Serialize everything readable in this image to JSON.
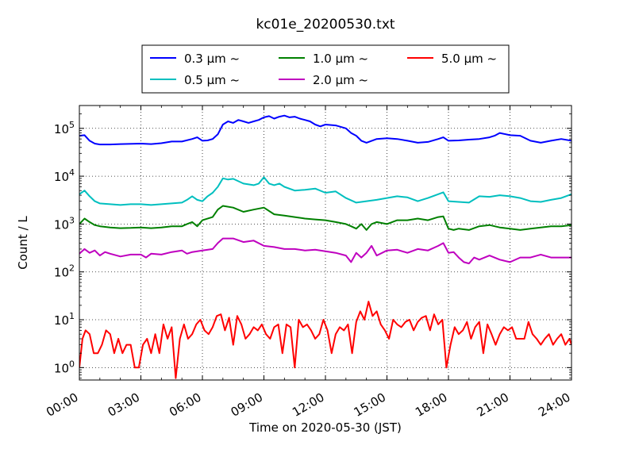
{
  "chart_data": {
    "type": "line",
    "title": "kc01e_20200530.txt",
    "xlabel": "Time on 2020-05-30 (JST)",
    "ylabel": "Count / L",
    "xlim": [
      0,
      24
    ],
    "ylim": [
      0.55,
      300000
    ],
    "yscale": "log",
    "grid": true,
    "legend_placement": "top-center",
    "x_tick_labels": [
      "00:00",
      "03:00",
      "06:00",
      "09:00",
      "12:00",
      "15:00",
      "18:00",
      "21:00",
      "24:00"
    ],
    "x_tick_values": [
      0,
      3,
      6,
      9,
      12,
      15,
      18,
      21,
      24
    ],
    "y_tick_labels": [
      {
        "base": "10",
        "exp": "0",
        "value": 1
      },
      {
        "base": "10",
        "exp": "1",
        "value": 10
      },
      {
        "base": "10",
        "exp": "2",
        "value": 100
      },
      {
        "base": "10",
        "exp": "3",
        "value": 1000
      },
      {
        "base": "10",
        "exp": "4",
        "value": 10000
      },
      {
        "base": "10",
        "exp": "5",
        "value": 100000
      }
    ],
    "series": [
      {
        "name": "0.3 μm ~",
        "color": "#0000ff",
        "x": [
          0,
          0.25,
          0.5,
          0.75,
          1,
          1.5,
          2,
          3,
          3.5,
          4,
          4.5,
          5,
          5.5,
          5.75,
          6,
          6.25,
          6.5,
          6.75,
          7,
          7.25,
          7.5,
          7.75,
          8,
          8.25,
          8.5,
          8.75,
          9,
          9.25,
          9.5,
          9.75,
          10,
          10.25,
          10.5,
          10.75,
          11,
          11.25,
          11.5,
          11.75,
          12,
          12.5,
          13,
          13.25,
          13.5,
          13.75,
          14,
          14.5,
          15,
          15.5,
          16,
          16.5,
          17,
          17.5,
          17.75,
          18,
          18.5,
          19,
          19.5,
          20,
          20.25,
          20.5,
          21,
          21.5,
          22,
          22.5,
          23,
          23.5,
          24
        ],
        "y": [
          70000,
          72000,
          55000,
          48000,
          46000,
          46000,
          47000,
          48000,
          47000,
          49000,
          53000,
          53000,
          60000,
          65000,
          55000,
          56000,
          60000,
          75000,
          120000,
          140000,
          130000,
          150000,
          140000,
          130000,
          140000,
          150000,
          170000,
          180000,
          160000,
          175000,
          185000,
          170000,
          175000,
          160000,
          150000,
          140000,
          120000,
          110000,
          120000,
          115000,
          100000,
          80000,
          70000,
          55000,
          50000,
          60000,
          62000,
          60000,
          55000,
          50000,
          52000,
          60000,
          65000,
          55000,
          56000,
          58000,
          60000,
          65000,
          70000,
          80000,
          72000,
          70000,
          55000,
          50000,
          55000,
          60000,
          55000
        ]
      },
      {
        "name": "0.5 μm ~",
        "color": "#00bfbf",
        "x": [
          0,
          0.25,
          0.5,
          0.75,
          1,
          1.5,
          2,
          2.5,
          3,
          3.5,
          4,
          4.5,
          5,
          5.25,
          5.5,
          5.75,
          6,
          6.25,
          6.5,
          6.75,
          7,
          7.25,
          7.5,
          8,
          8.5,
          8.75,
          9,
          9.25,
          9.5,
          9.75,
          10,
          10.5,
          11,
          11.5,
          12,
          12.5,
          13,
          13.5,
          14,
          14.5,
          15,
          15.5,
          16,
          16.5,
          17,
          17.5,
          17.75,
          18,
          18.5,
          19,
          19.5,
          20,
          20.5,
          21,
          21.5,
          22,
          22.5,
          23,
          23.5,
          24
        ],
        "y": [
          4200,
          5000,
          3800,
          3000,
          2700,
          2600,
          2500,
          2600,
          2600,
          2500,
          2600,
          2700,
          2800,
          3200,
          3800,
          3200,
          3000,
          3800,
          4500,
          6000,
          9000,
          8500,
          8800,
          7000,
          6500,
          7000,
          9500,
          7000,
          6500,
          7000,
          6000,
          5000,
          5200,
          5500,
          4500,
          4800,
          3500,
          2800,
          3000,
          3200,
          3500,
          3800,
          3600,
          3000,
          3500,
          4200,
          4600,
          3000,
          2900,
          2800,
          3800,
          3700,
          4000,
          3800,
          3500,
          3000,
          2900,
          3200,
          3500,
          4200
        ]
      },
      {
        "name": "1.0 μm ~",
        "color": "#008000",
        "x": [
          0,
          0.25,
          0.5,
          0.75,
          1,
          1.5,
          2,
          2.5,
          3,
          3.5,
          4,
          4.5,
          5,
          5.25,
          5.5,
          5.75,
          6,
          6.5,
          6.75,
          7,
          7.5,
          8,
          8.5,
          9,
          9.5,
          10,
          10.5,
          11,
          11.5,
          12,
          12.5,
          13,
          13.25,
          13.5,
          13.75,
          14,
          14.25,
          14.5,
          15,
          15.5,
          16,
          16.5,
          17,
          17.5,
          17.75,
          18,
          18.25,
          18.5,
          19,
          19.5,
          20,
          20.5,
          21,
          21.5,
          22,
          22.5,
          23,
          23.5,
          24
        ],
        "y": [
          1000,
          1300,
          1100,
          950,
          900,
          850,
          820,
          830,
          850,
          820,
          850,
          900,
          900,
          1000,
          1100,
          900,
          1200,
          1400,
          2000,
          2400,
          2200,
          1800,
          2000,
          2200,
          1600,
          1500,
          1400,
          1300,
          1250,
          1200,
          1100,
          1000,
          900,
          800,
          1000,
          750,
          1000,
          1100,
          1000,
          1200,
          1200,
          1300,
          1200,
          1400,
          1450,
          800,
          750,
          800,
          750,
          900,
          950,
          850,
          800,
          750,
          800,
          850,
          900,
          900,
          950
        ]
      },
      {
        "name": "2.0 μm ~",
        "color": "#bf00bf",
        "x": [
          0,
          0.25,
          0.5,
          0.75,
          1,
          1.25,
          1.5,
          2,
          2.5,
          3,
          3.25,
          3.5,
          4,
          4.5,
          5,
          5.25,
          5.5,
          6,
          6.5,
          6.75,
          7,
          7.5,
          8,
          8.5,
          9,
          9.5,
          10,
          10.5,
          11,
          11.5,
          12,
          12.5,
          13,
          13.25,
          13.5,
          13.75,
          14,
          14.25,
          14.5,
          15,
          15.5,
          16,
          16.5,
          17,
          17.5,
          17.75,
          18,
          18.25,
          18.5,
          18.75,
          19,
          19.25,
          19.5,
          20,
          20.5,
          21,
          21.5,
          22,
          22.5,
          23,
          23.5,
          24
        ],
        "y": [
          240,
          300,
          250,
          280,
          220,
          260,
          240,
          210,
          230,
          230,
          200,
          240,
          230,
          260,
          280,
          240,
          260,
          280,
          300,
          400,
          500,
          500,
          420,
          450,
          350,
          330,
          300,
          300,
          280,
          290,
          270,
          250,
          220,
          160,
          250,
          200,
          250,
          350,
          220,
          280,
          290,
          250,
          300,
          280,
          350,
          400,
          250,
          260,
          200,
          160,
          150,
          200,
          180,
          220,
          180,
          160,
          200,
          200,
          230,
          200,
          200,
          200
        ]
      },
      {
        "name": "5.0 μm ~",
        "color": "#ff0000",
        "x": [
          0,
          0.15,
          0.3,
          0.5,
          0.7,
          0.9,
          1.1,
          1.3,
          1.5,
          1.7,
          1.9,
          2.1,
          2.3,
          2.5,
          2.7,
          2.9,
          3.1,
          3.3,
          3.5,
          3.7,
          3.9,
          4.1,
          4.3,
          4.5,
          4.7,
          4.9,
          5.1,
          5.3,
          5.5,
          5.7,
          5.9,
          6.1,
          6.3,
          6.5,
          6.7,
          6.9,
          7.1,
          7.3,
          7.5,
          7.7,
          7.9,
          8.1,
          8.3,
          8.5,
          8.7,
          8.9,
          9.1,
          9.3,
          9.5,
          9.7,
          9.9,
          10.1,
          10.3,
          10.5,
          10.7,
          10.9,
          11.1,
          11.3,
          11.5,
          11.7,
          11.9,
          12.1,
          12.3,
          12.5,
          12.7,
          12.9,
          13.1,
          13.3,
          13.5,
          13.7,
          13.9,
          14.1,
          14.3,
          14.5,
          14.7,
          14.9,
          15.1,
          15.3,
          15.5,
          15.7,
          15.9,
          16.1,
          16.3,
          16.5,
          16.7,
          16.9,
          17.1,
          17.3,
          17.5,
          17.7,
          17.9,
          18.1,
          18.3,
          18.5,
          18.7,
          18.9,
          19.1,
          19.3,
          19.5,
          19.7,
          19.9,
          20.1,
          20.3,
          20.5,
          20.7,
          20.9,
          21.1,
          21.3,
          21.5,
          21.7,
          21.9,
          22.1,
          22.3,
          22.5,
          22.7,
          22.9,
          23.1,
          23.3,
          23.5,
          23.7,
          23.9,
          24
        ],
        "y": [
          1,
          4,
          6,
          5,
          2,
          2,
          3,
          6,
          5,
          2,
          4,
          2,
          3,
          3,
          1,
          1,
          3,
          4,
          2,
          5,
          2,
          8,
          4,
          7,
          0.6,
          4,
          8,
          4,
          5,
          8,
          10,
          6,
          5,
          7,
          12,
          13,
          6,
          11,
          3,
          12,
          8,
          4,
          5,
          7,
          6,
          8,
          5,
          4,
          7,
          8,
          2,
          8,
          7,
          1,
          10,
          7,
          8,
          6,
          4,
          5,
          10,
          6,
          2,
          5,
          7,
          6,
          8,
          2,
          9,
          15,
          10,
          24,
          12,
          15,
          8,
          6,
          4,
          10,
          8,
          7,
          9,
          10,
          6,
          9,
          11,
          12,
          6,
          13,
          8,
          10,
          1,
          3,
          7,
          5,
          6,
          9,
          4,
          7,
          9,
          2,
          8,
          5,
          3,
          5,
          7,
          6,
          7,
          4,
          4,
          4,
          9,
          5,
          4,
          3,
          4,
          5,
          3,
          4,
          5,
          3,
          4,
          3
        ]
      }
    ]
  }
}
